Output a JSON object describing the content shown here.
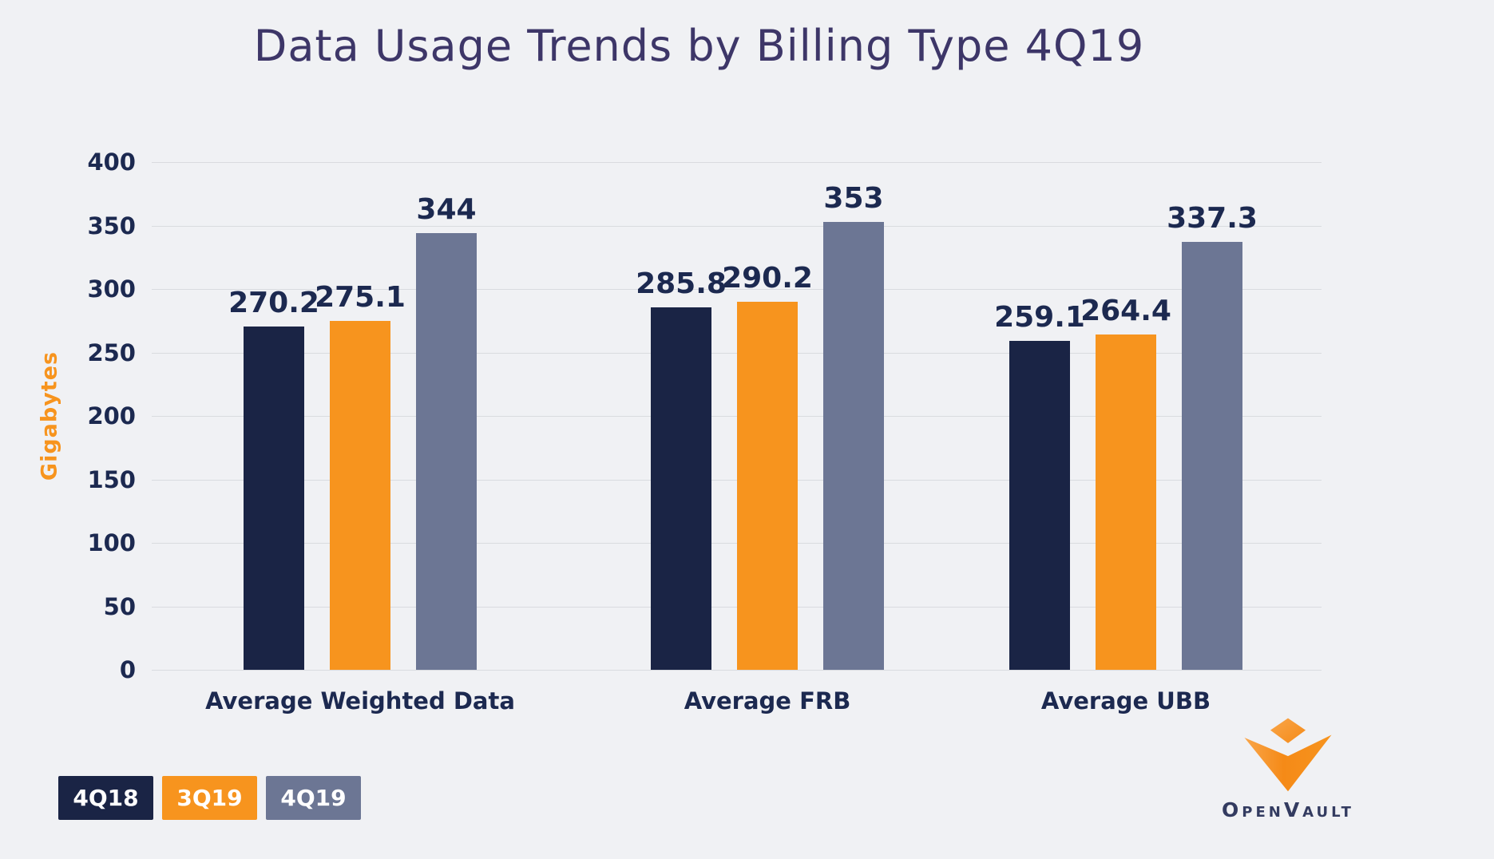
{
  "chart_data": {
    "type": "bar",
    "title": "Data Usage Trends by Billing Type 4Q19",
    "xlabel": "",
    "ylabel": "Gigabytes",
    "ylim": [
      0,
      400
    ],
    "ytick_step": 50,
    "yticks": [
      "0",
      "50",
      "100",
      "150",
      "200",
      "250",
      "300",
      "350",
      "400"
    ],
    "grid": "horizontal",
    "legend_position": "bottom-left",
    "categories": [
      "Average Weighted Data",
      "Average FRB",
      "Average UBB"
    ],
    "series": [
      {
        "name": "4Q18",
        "color": "#1a2445",
        "values": [
          270.2,
          285.8,
          259.1
        ],
        "labels": [
          "270.2",
          "285.8",
          "259.1"
        ]
      },
      {
        "name": "3Q19",
        "color": "#f7941e",
        "values": [
          275.1,
          290.2,
          264.4
        ],
        "labels": [
          "275.1",
          "290.2",
          "264.4"
        ]
      },
      {
        "name": "4Q19",
        "color": "#6c7694",
        "values": [
          344,
          353,
          337.3
        ],
        "labels": [
          "344",
          "353",
          "337.3"
        ]
      }
    ]
  },
  "colors": {
    "background": "#f0f1f4",
    "title_text": "#3d3668",
    "axis_text": "#1c2950",
    "value_text": "#1c2950",
    "gridline": "#d9dbdf",
    "ylabel_text": "#f7941e",
    "legend_text": "#ffffff",
    "logo_text": "#333b60",
    "logo_orange": "#f7941e",
    "logo_orange_light": "#f9a64a"
  },
  "branding": {
    "logo_text": "OpenVault"
  }
}
